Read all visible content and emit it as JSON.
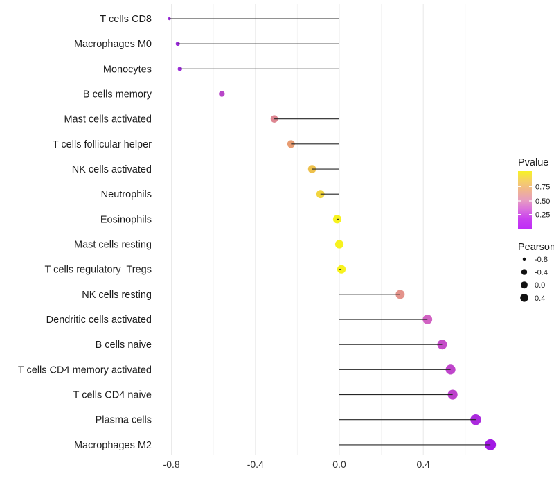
{
  "figure": {
    "background": "#ffffff"
  },
  "chart_data": {
    "type": "scatter",
    "style": "horizontal-lollipop",
    "title": "",
    "xlabel": "",
    "ylabel": "",
    "grid": true,
    "legend_position": "right",
    "baseline": 0,
    "xlim": [
      -0.89,
      0.8
    ],
    "x_ticks": [
      "-0.8",
      "-0.4",
      "0.0",
      "0.4"
    ],
    "x_tick_values": [
      -0.8,
      -0.4,
      0.0,
      0.4
    ],
    "x_minor_tick_values": [
      -0.6,
      -0.2,
      0.2,
      0.6
    ],
    "categories": [
      "T cells CD8",
      "Macrophages M0",
      "Monocytes",
      "B cells memory",
      "Mast cells activated",
      "T cells follicular helper",
      "NK cells activated",
      "Neutrophils",
      "Eosinophils",
      "Mast cells resting",
      "T cells regulatory  Tregs",
      "NK cells resting",
      "Dendritic cells activated",
      "B cells naive",
      "T cells CD4 memory activated",
      "T cells CD4 naive",
      "Plasma cells",
      "Macrophages M2"
    ],
    "points": [
      {
        "category": "T cells CD8",
        "pearson": -0.81,
        "color": "#9a2bd8",
        "radius": 2.2
      },
      {
        "category": "Macrophages M0",
        "pearson": -0.77,
        "color": "#9a2bd8",
        "radius": 3.0
      },
      {
        "category": "Monocytes",
        "pearson": -0.76,
        "color": "#9c2ed8",
        "radius": 3.2
      },
      {
        "category": "B cells memory",
        "pearson": -0.56,
        "color": "#b846c8",
        "radius": 4.2
      },
      {
        "category": "Mast cells activated",
        "pearson": -0.31,
        "color": "#dd8691",
        "radius": 5.3
      },
      {
        "category": "T cells follicular helper",
        "pearson": -0.23,
        "color": "#e89c72",
        "radius": 5.5
      },
      {
        "category": "NK cells activated",
        "pearson": -0.13,
        "color": "#eec14c",
        "radius": 5.8
      },
      {
        "category": "Neutrophils",
        "pearson": -0.09,
        "color": "#f2d53e",
        "radius": 5.9
      },
      {
        "category": "Eosinophils",
        "pearson": -0.01,
        "color": "#f7f21e",
        "radius": 6.1
      },
      {
        "category": "Mast cells resting",
        "pearson": 0.0,
        "color": "#f7f21e",
        "radius": 6.1
      },
      {
        "category": "T cells regulatory  Tregs",
        "pearson": 0.01,
        "color": "#f7f21e",
        "radius": 6.1
      },
      {
        "category": "NK cells resting",
        "pearson": 0.29,
        "color": "#e4938b",
        "radius": 6.5
      },
      {
        "category": "Dendritic cells activated",
        "pearson": 0.42,
        "color": "#d162c3",
        "radius": 6.9
      },
      {
        "category": "B cells naive",
        "pearson": 0.49,
        "color": "#c44cc8",
        "radius": 7.0
      },
      {
        "category": "T cells CD4 memory activated",
        "pearson": 0.53,
        "color": "#bf45cb",
        "radius": 7.1
      },
      {
        "category": "T cells CD4 naive",
        "pearson": 0.54,
        "color": "#bd41cc",
        "radius": 7.1
      },
      {
        "category": "Plasma cells",
        "pearson": 0.65,
        "color": "#ab2ade",
        "radius": 7.7
      },
      {
        "category": "Macrophages M2",
        "pearson": 0.72,
        "color": "#a21ae4",
        "radius": 8.0
      }
    ],
    "legends": {
      "pvalue": {
        "title": "Pvalue",
        "tick_labels": [
          "0.75",
          "0.50",
          "0.25"
        ],
        "gradient_top_to_bottom": [
          "#f7f225",
          "#f5d066",
          "#f0b58f",
          "#e79ec0",
          "#da70dd",
          "#c940ef",
          "#bf2ef6"
        ]
      },
      "pearson": {
        "title": "Pearson",
        "entries": [
          {
            "label": "-0.8",
            "radius": 2.2
          },
          {
            "label": "-0.4",
            "radius": 4.2
          },
          {
            "label": "0.0",
            "radius": 5.0
          },
          {
            "label": "0.4",
            "radius": 5.8
          }
        ]
      }
    },
    "colors": {
      "stem": "#262626",
      "grid_major": "#e8e8e8",
      "grid_minor": "#f4f4f4",
      "axis_text": "#1c1c1c",
      "legend_dot": "#111111"
    }
  }
}
